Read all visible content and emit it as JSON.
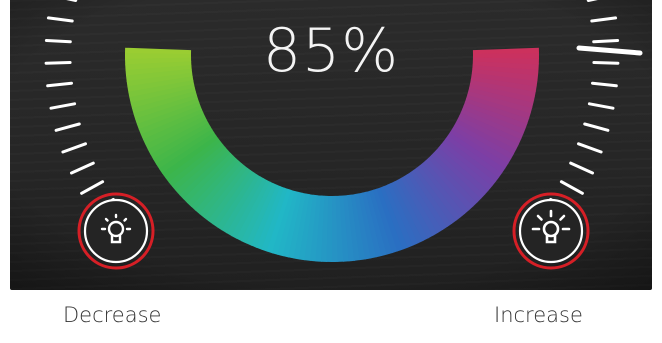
{
  "brightness": {
    "label": "85%",
    "level_percent": 85
  },
  "controls": {
    "decrease_label": "Decrease",
    "increase_label": "Increase"
  },
  "icons": {
    "decrease": "bulb-dim-icon",
    "increase": "bulb-bright-icon"
  },
  "colors": {
    "background": "#262626",
    "tick": "#ffffff",
    "highlight_ring": "#d61f26",
    "ring_gradient": [
      "#9acd32",
      "#3cb54a",
      "#21b7c6",
      "#2a6fc2",
      "#7b3fa6",
      "#d0305a"
    ]
  }
}
